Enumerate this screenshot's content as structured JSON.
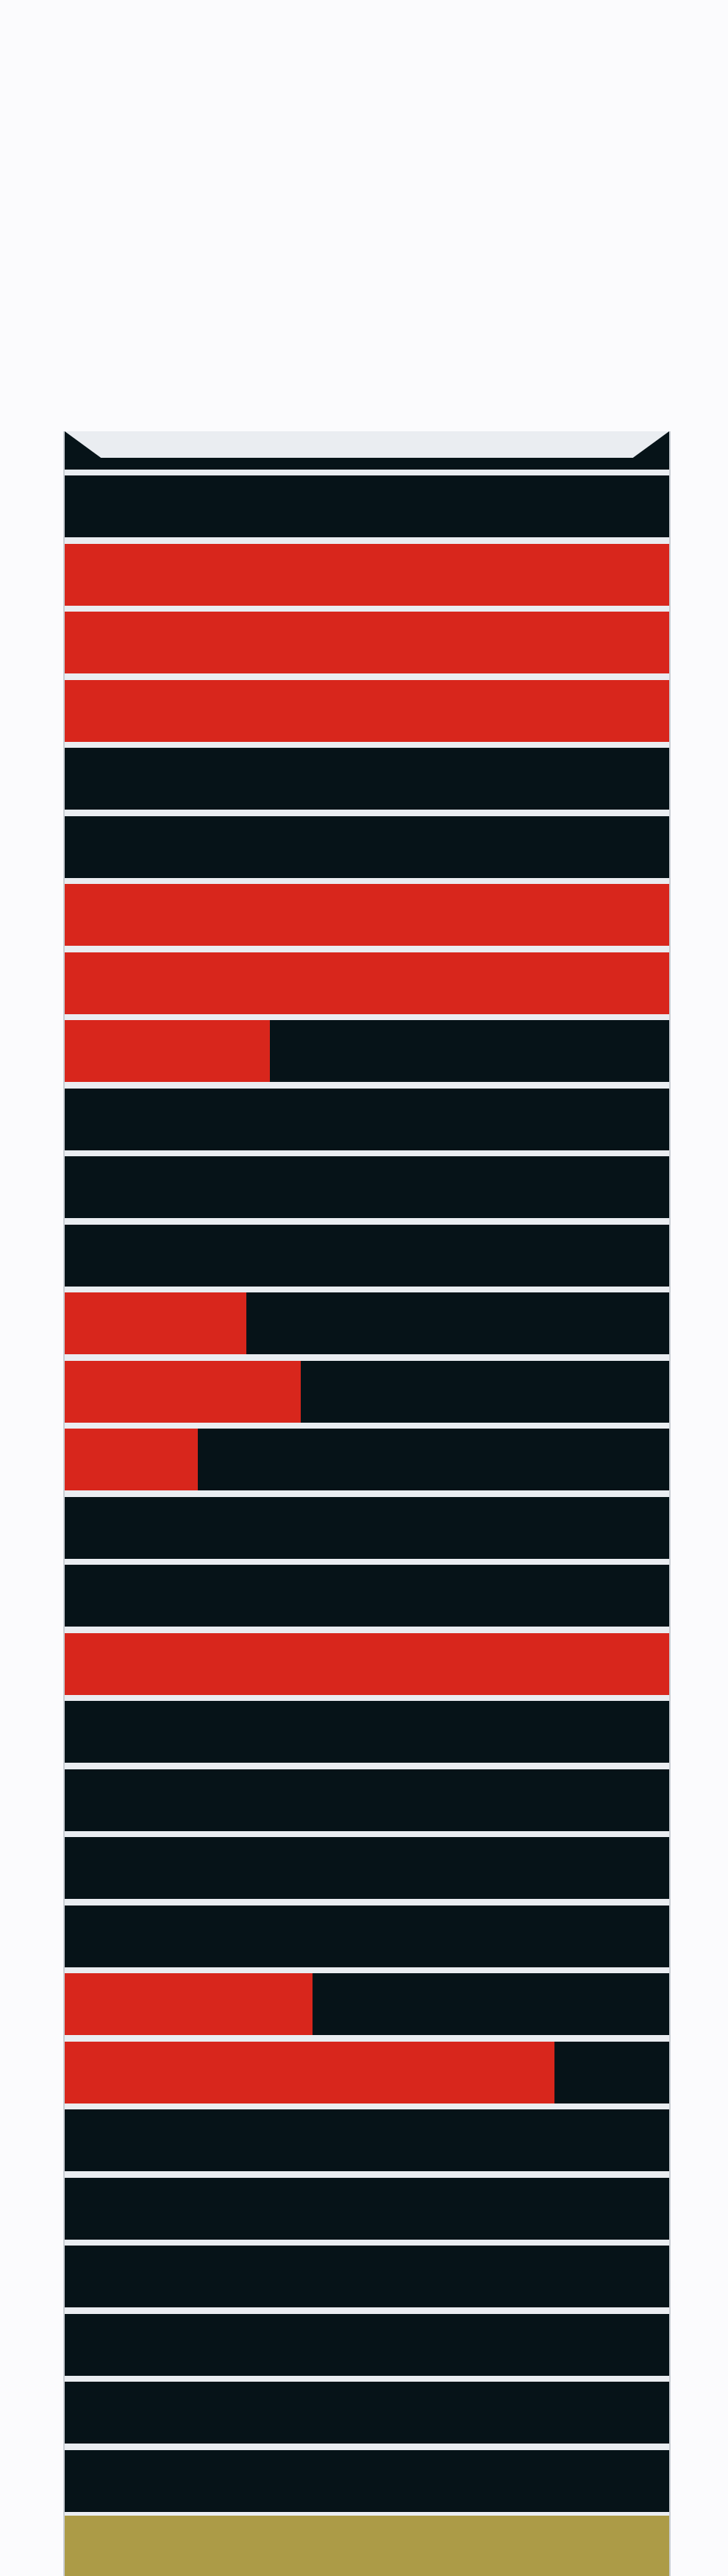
{
  "colors": {
    "background": "#fbfbfd",
    "track": "#061318",
    "fill": "#d8261c",
    "separator": "#eaedf1",
    "footer": "#ac9b47"
  },
  "bars": [
    {
      "level": 0
    },
    {
      "level": 1
    },
    {
      "level": 1
    },
    {
      "level": 1
    },
    {
      "level": 0
    },
    {
      "level": 0
    },
    {
      "level": 1
    },
    {
      "level": 1
    },
    {
      "level": 0.34
    },
    {
      "level": 0
    },
    {
      "level": 0
    },
    {
      "level": 0
    },
    {
      "level": 0.3
    },
    {
      "level": 0.39
    },
    {
      "level": 0.22
    },
    {
      "level": 0
    },
    {
      "level": 0
    },
    {
      "level": 1
    },
    {
      "level": 0
    },
    {
      "level": 0
    },
    {
      "level": 0
    },
    {
      "level": 0
    },
    {
      "level": 0.41
    },
    {
      "level": 0.81
    },
    {
      "level": 0
    },
    {
      "level": 0
    },
    {
      "level": 0
    },
    {
      "level": 0
    },
    {
      "level": 0
    },
    {
      "level": 0
    }
  ]
}
